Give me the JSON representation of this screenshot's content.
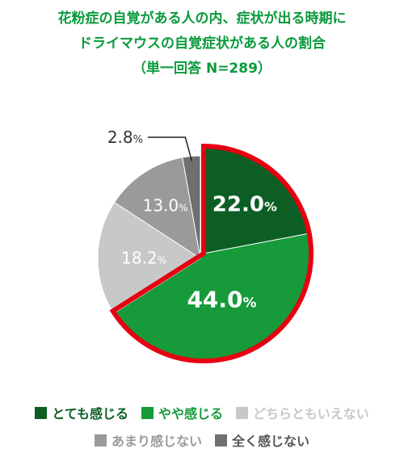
{
  "title": {
    "line1": "花粉症の自覚がある人の内、症状が出る時期に",
    "line2": "ドライマウスの自覚症状がある人の割合",
    "line3": "（単一回答 N=289）"
  },
  "colors": {
    "title": "#0a9a3c",
    "highlight_border": "#e60012"
  },
  "chart_data": {
    "type": "pie",
    "start_angle_deg": 0,
    "direction": "clockwise",
    "unit": "%",
    "highlighted_slices": [
      "とても感じる",
      "やや感じる"
    ],
    "slices": [
      {
        "label": "とても感じる",
        "value": 22.0,
        "value_text": "22.0",
        "color": "#0d5e24",
        "label_color": "#ffffff"
      },
      {
        "label": "やや感じる",
        "value": 44.0,
        "value_text": "44.0",
        "color": "#169a3a",
        "label_color": "#ffffff"
      },
      {
        "label": "どちらともいえない",
        "value": 18.2,
        "value_text": "18.2",
        "color": "#c8c8c8",
        "label_color": "#ffffff"
      },
      {
        "label": "あまり感じない",
        "value": 13.0,
        "value_text": "13.0",
        "color": "#9a9a9a",
        "label_color": "#ffffff"
      },
      {
        "label": "全く感じない",
        "value": 2.8,
        "value_text": "2.8",
        "color": "#6f6f6f",
        "label_color": "#333333"
      }
    ]
  },
  "legend": {
    "row1": [
      {
        "label": "とても感じる",
        "color": "#0d5e24",
        "text_color": "#0d5e24"
      },
      {
        "label": "やや感じる",
        "color": "#169a3a",
        "text_color": "#169a3a"
      },
      {
        "label": "どちらともいえない",
        "color": "#c8c8c8",
        "text_color": "#c8c8c8"
      }
    ],
    "row2": [
      {
        "label": "あまり感じない",
        "color": "#9a9a9a",
        "text_color": "#9a9a9a"
      },
      {
        "label": "全く感じない",
        "color": "#6f6f6f",
        "text_color": "#555555"
      }
    ]
  }
}
